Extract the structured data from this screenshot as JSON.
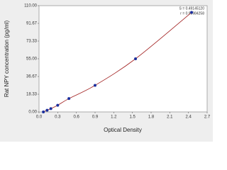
{
  "chart_data": {
    "type": "scatter",
    "x_label": "Optical Density",
    "y_label": "Rat NPY concentration (pg/ml)",
    "annotations": [
      "S = 0.49145120",
      "r = 0.99984258"
    ],
    "series": [
      {
        "color": "#1a2f9e",
        "line_color": "#a01c1c",
        "x": [
          0.07,
          0.13,
          0.19,
          0.3,
          0.48,
          0.9,
          1.55,
          2.45
        ],
        "values": [
          0,
          1.7,
          3.4,
          6.9,
          13.8,
          27.5,
          55,
          103
        ]
      }
    ],
    "xlim": [
      0,
      2.7
    ],
    "ylim": [
      0,
      110
    ],
    "xticks": [
      {
        "value": 0,
        "label": "0.0"
      },
      0.3,
      0.6,
      0.9,
      1.2,
      1.5,
      1.8,
      2.1,
      2.4,
      2.7
    ],
    "yticks": [
      {
        "value": 0,
        "label": "0.00"
      },
      18.33,
      36.67,
      {
        "value": 55,
        "label": "55.00"
      },
      73.33,
      91.67,
      {
        "value": 110,
        "label": "110.00"
      }
    ],
    "connect": true,
    "grid": false
  }
}
